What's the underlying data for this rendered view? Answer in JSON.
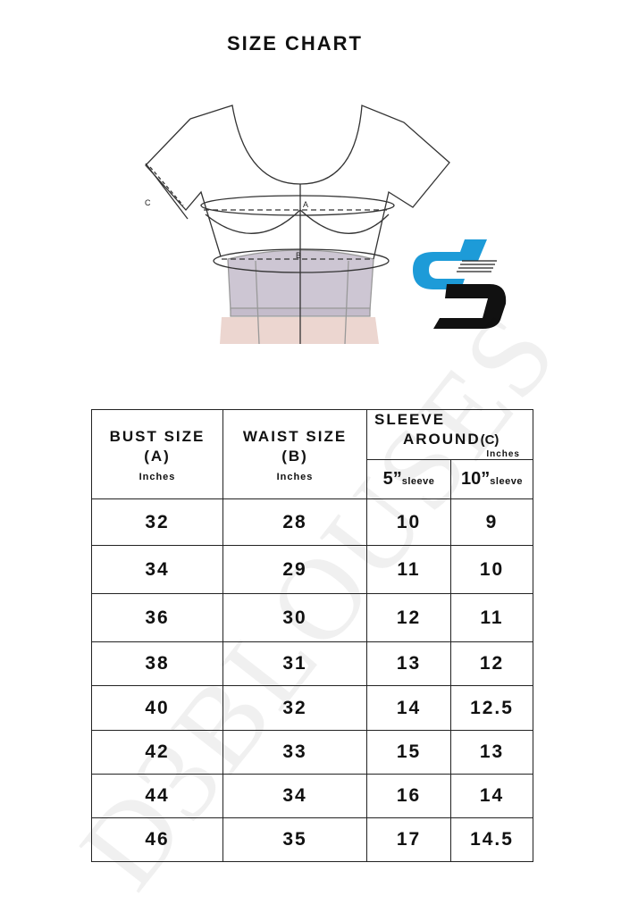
{
  "title": "SIZE CHART",
  "diagram": {
    "labels": {
      "a": "A",
      "b": "B",
      "c": "C"
    }
  },
  "watermark": "D3BLOUSES",
  "colors": {
    "logo_blue": "#1d9bd8",
    "logo_black": "#111111",
    "waist_fill": "#cdc6d3",
    "skirt_fill": "#ecd6d0"
  },
  "table": {
    "headers": {
      "bust": {
        "label": "BUST SIZE",
        "sub": "(A)",
        "unit": "Inches"
      },
      "waist": {
        "label": "WAIST SIZE",
        "sub": "(B)",
        "unit": "Inches"
      },
      "sleeve": {
        "label1": "SLEEVE",
        "label2": "AROUND",
        "sub": "(C)",
        "unit": "Inches",
        "cols": [
          {
            "num": "5”",
            "suffix": "sleeve"
          },
          {
            "num": "10”",
            "suffix": "sleeve"
          }
        ]
      }
    },
    "rows": [
      [
        "32",
        "28",
        "10",
        "9"
      ],
      [
        "34",
        "29",
        "11",
        "10"
      ],
      [
        "36",
        "30",
        "12",
        "11"
      ],
      [
        "38",
        "31",
        "13",
        "12"
      ],
      [
        "40",
        "32",
        "14",
        "12.5"
      ],
      [
        "42",
        "33",
        "15",
        "13"
      ],
      [
        "44",
        "34",
        "16",
        "14"
      ],
      [
        "46",
        "35",
        "17",
        "14.5"
      ]
    ]
  }
}
